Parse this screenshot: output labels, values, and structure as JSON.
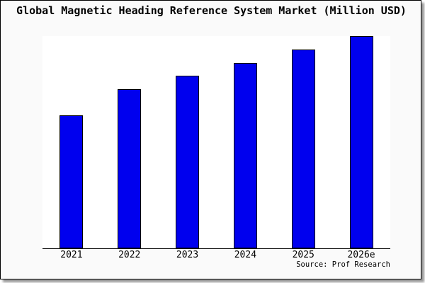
{
  "frame": {
    "background": "#fafafa",
    "border_color": "#000000",
    "shadow_color": "#999999"
  },
  "title": "Global Magnetic Heading Reference System Market (Million USD)",
  "source_note": "Source: Prof Research",
  "chart_data": {
    "type": "bar",
    "title": "Global Magnetic Heading Reference System Market (Million USD)",
    "categories": [
      "2021",
      "2022",
      "2023",
      "2024",
      "2025",
      "2026e"
    ],
    "values": [
      62.7,
      75.0,
      81.3,
      87.3,
      93.7,
      100.0
    ],
    "values_note": "No y-axis ticks or data labels are rendered; values are bar heights normalized so 2026e = 100",
    "xlabel": "",
    "ylabel": "",
    "ylim": [
      0,
      100
    ],
    "y_axis_ticks": [],
    "grid": false,
    "legend": "none",
    "bar_color": "#0000ee",
    "bar_border_color": "#000000",
    "plot_background": "#ffffff",
    "axis_line_color": "#000000",
    "source": "Source: Prof Research"
  }
}
